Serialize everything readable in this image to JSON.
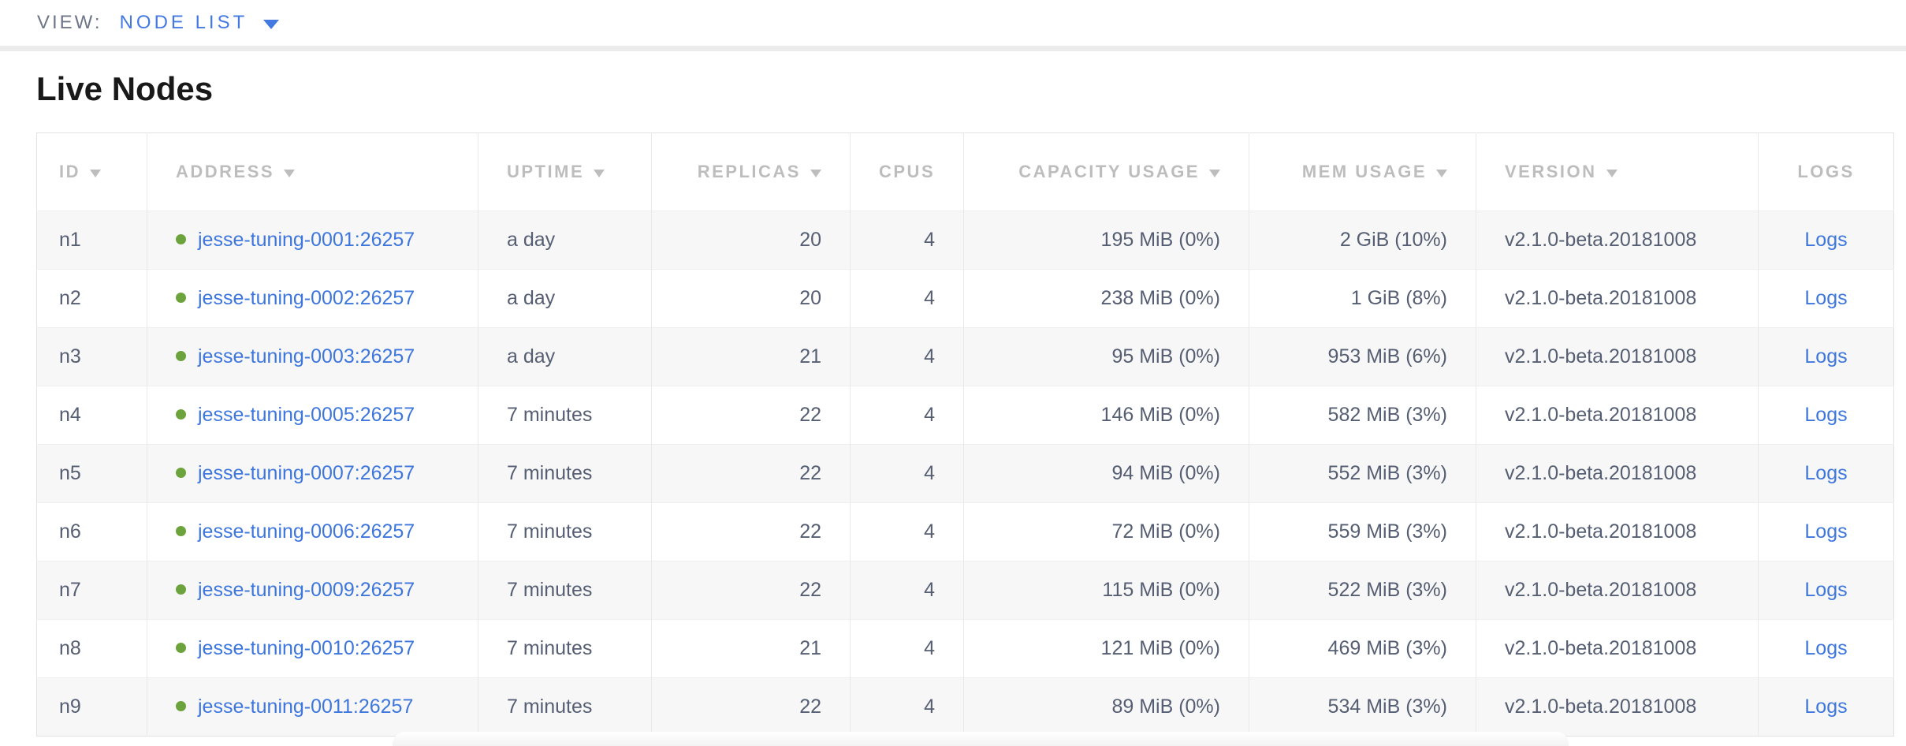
{
  "view_bar": {
    "label": "VIEW:",
    "selected": "NODE LIST"
  },
  "page": {
    "title": "Live Nodes"
  },
  "table": {
    "columns": [
      {
        "id": "id",
        "label": "ID",
        "sortable": true,
        "align": "left"
      },
      {
        "id": "address",
        "label": "ADDRESS",
        "sortable": true,
        "align": "left"
      },
      {
        "id": "uptime",
        "label": "UPTIME",
        "sortable": true,
        "align": "left"
      },
      {
        "id": "replicas",
        "label": "REPLICAS",
        "sortable": true,
        "align": "right"
      },
      {
        "id": "cpus",
        "label": "CPUS",
        "sortable": false,
        "align": "right"
      },
      {
        "id": "capacity",
        "label": "CAPACITY USAGE",
        "sortable": true,
        "align": "right"
      },
      {
        "id": "mem",
        "label": "MEM USAGE",
        "sortable": true,
        "align": "right"
      },
      {
        "id": "version",
        "label": "VERSION",
        "sortable": true,
        "align": "left"
      },
      {
        "id": "logs",
        "label": "LOGS",
        "sortable": false,
        "align": "center"
      }
    ],
    "rows": [
      {
        "id": "n1",
        "status": "healthy",
        "address": "jesse-tuning-0001:26257",
        "uptime": "a day",
        "replicas": "20",
        "cpus": "4",
        "capacity": "195 MiB (0%)",
        "mem": "2 GiB (10%)",
        "version": "v2.1.0-beta.20181008",
        "logs_label": "Logs"
      },
      {
        "id": "n2",
        "status": "healthy",
        "address": "jesse-tuning-0002:26257",
        "uptime": "a day",
        "replicas": "20",
        "cpus": "4",
        "capacity": "238 MiB (0%)",
        "mem": "1 GiB (8%)",
        "version": "v2.1.0-beta.20181008",
        "logs_label": "Logs"
      },
      {
        "id": "n3",
        "status": "healthy",
        "address": "jesse-tuning-0003:26257",
        "uptime": "a day",
        "replicas": "21",
        "cpus": "4",
        "capacity": "95 MiB (0%)",
        "mem": "953 MiB (6%)",
        "version": "v2.1.0-beta.20181008",
        "logs_label": "Logs"
      },
      {
        "id": "n4",
        "status": "healthy",
        "address": "jesse-tuning-0005:26257",
        "uptime": "7 minutes",
        "replicas": "22",
        "cpus": "4",
        "capacity": "146 MiB (0%)",
        "mem": "582 MiB (3%)",
        "version": "v2.1.0-beta.20181008",
        "logs_label": "Logs"
      },
      {
        "id": "n5",
        "status": "healthy",
        "address": "jesse-tuning-0007:26257",
        "uptime": "7 minutes",
        "replicas": "22",
        "cpus": "4",
        "capacity": "94 MiB (0%)",
        "mem": "552 MiB (3%)",
        "version": "v2.1.0-beta.20181008",
        "logs_label": "Logs"
      },
      {
        "id": "n6",
        "status": "healthy",
        "address": "jesse-tuning-0006:26257",
        "uptime": "7 minutes",
        "replicas": "22",
        "cpus": "4",
        "capacity": "72 MiB (0%)",
        "mem": "559 MiB (3%)",
        "version": "v2.1.0-beta.20181008",
        "logs_label": "Logs"
      },
      {
        "id": "n7",
        "status": "healthy",
        "address": "jesse-tuning-0009:26257",
        "uptime": "7 minutes",
        "replicas": "22",
        "cpus": "4",
        "capacity": "115 MiB (0%)",
        "mem": "522 MiB (3%)",
        "version": "v2.1.0-beta.20181008",
        "logs_label": "Logs"
      },
      {
        "id": "n8",
        "status": "healthy",
        "address": "jesse-tuning-0010:26257",
        "uptime": "7 minutes",
        "replicas": "21",
        "cpus": "4",
        "capacity": "121 MiB (0%)",
        "mem": "469 MiB (3%)",
        "version": "v2.1.0-beta.20181008",
        "logs_label": "Logs"
      },
      {
        "id": "n9",
        "status": "healthy",
        "address": "jesse-tuning-0011:26257",
        "uptime": "7 minutes",
        "replicas": "22",
        "cpus": "4",
        "capacity": "89 MiB (0%)",
        "mem": "534 MiB (3%)",
        "version": "v2.1.0-beta.20181008",
        "logs_label": "Logs"
      }
    ]
  },
  "icons": {
    "dropdown": "triangle-down-icon",
    "sort": "triangle-down-icon",
    "node_status_healthy": "green-dot-icon"
  },
  "colors": {
    "accent_blue": "#4479e2",
    "link": "#3d76dd",
    "healthy_green": "#6da33c",
    "header_gray": "#bdbdbd",
    "body_text": "#555e72",
    "title_text": "#191919",
    "view_label": "#6e7687",
    "stripe": "#f7f7f7"
  }
}
